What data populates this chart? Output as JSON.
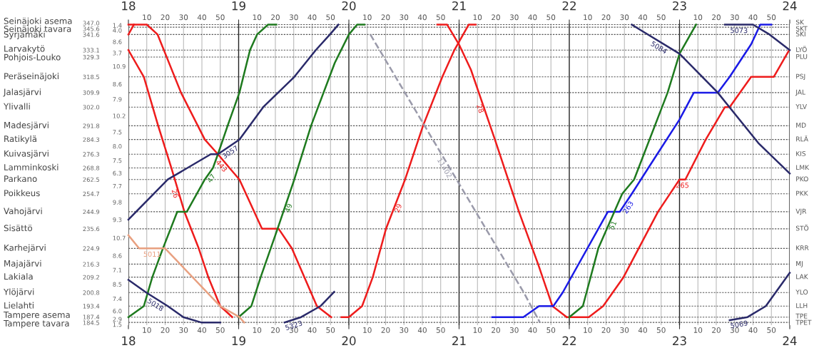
{
  "chart_data": {
    "type": "line",
    "xlim": [
      18,
      24
    ],
    "xticks": [
      18,
      {
        "value": 18.1667,
        "label": null
      },
      {
        "value": 18.3333,
        "label": null
      },
      {
        "value": 18.5,
        "label": null
      },
      {
        "value": 18.6667,
        "label": null
      },
      {
        "value": 18.8333,
        "label": null
      },
      19,
      {
        "value": 19.1667,
        "label": null
      },
      {
        "value": 19.3333,
        "label": null
      },
      {
        "value": 19.5,
        "label": null
      },
      {
        "value": 19.6667,
        "label": null
      },
      {
        "value": 19.8333,
        "label": null
      },
      20,
      {
        "value": 20.1667,
        "label": null
      },
      {
        "value": 20.3333,
        "label": null
      },
      {
        "value": 20.5,
        "label": null
      },
      {
        "value": 20.6667,
        "label": null
      },
      {
        "value": 20.8333,
        "label": null
      },
      21,
      {
        "value": 21.1667,
        "label": null
      },
      {
        "value": 21.3333,
        "label": null
      },
      {
        "value": 21.5,
        "label": null
      },
      {
        "value": 21.6667,
        "label": null
      },
      {
        "value": 21.8333,
        "label": null
      },
      22,
      {
        "value": 22.1667,
        "label": null
      },
      {
        "value": 22.3333,
        "label": null
      },
      {
        "value": 22.5,
        "label": null
      },
      {
        "value": 22.6667,
        "label": null
      },
      {
        "value": 22.8333,
        "label": null
      },
      23,
      {
        "value": 23.1667,
        "label": null
      },
      {
        "value": 23.3333,
        "label": null
      },
      {
        "value": 23.5,
        "label": null
      },
      {
        "value": 23.6667,
        "label": null
      },
      {
        "value": 23.8333,
        "label": null
      },
      24
    ],
    "x2lim": [
      18,
      24
    ],
    "x2ticks": [
      18,
      {
        "value": 18.1667,
        "label": null
      },
      {
        "value": 18.3333,
        "label": null
      },
      {
        "value": 18.5,
        "label": null
      },
      {
        "value": 18.6667,
        "label": null
      },
      {
        "value": 18.8333,
        "label": null
      },
      19,
      {
        "value": 19.1667,
        "label": null
      },
      {
        "value": 19.3333,
        "label": null
      },
      {
        "value": 19.5,
        "label": null
      },
      {
        "value": 19.6667,
        "label": null
      },
      {
        "value": 19.8333,
        "label": null
      },
      20,
      {
        "value": 20.1667,
        "label": null
      },
      {
        "value": 20.3333,
        "label": null
      },
      {
        "value": 20.5,
        "label": null
      },
      {
        "value": 20.6667,
        "label": null
      },
      {
        "value": 20.8333,
        "label": null
      },
      21,
      {
        "value": 21.1667,
        "label": null
      },
      {
        "value": 21.3333,
        "label": null
      },
      {
        "value": 21.5,
        "label": null
      },
      {
        "value": 21.6667,
        "label": null
      },
      {
        "value": 21.8333,
        "label": null
      },
      22,
      {
        "value": 22.1667,
        "label": null
      },
      {
        "value": 22.3333,
        "label": null
      },
      {
        "value": 22.5,
        "label": null
      },
      {
        "value": 22.6667,
        "label": null
      },
      {
        "value": 22.8333,
        "label": null
      },
      23,
      {
        "value": 23.1667,
        "label": null
      },
      {
        "value": 23.3333,
        "label": null
      },
      {
        "value": 23.5,
        "label": null
      },
      {
        "value": 23.6667,
        "label": null
      },
      {
        "value": 23.8333,
        "label": null
      },
      24
    ],
    "ylim": [
      183.0,
      347.6
    ],
    "yticks": [
      {
        "value": 347.0,
        "label": "347.0"
      },
      {
        "value": 345.6,
        "label": "345.6"
      },
      {
        "value": 341.6,
        "label": "341.6"
      },
      {
        "value": 333.1,
        "label": "333.1"
      },
      {
        "value": 329.3,
        "label": "329.3"
      },
      {
        "value": 318.5,
        "label": "318.5"
      },
      {
        "value": 309.9,
        "label": "309.9"
      },
      {
        "value": 302.0,
        "label": "302.0"
      },
      {
        "value": 291.8,
        "label": "291.8"
      },
      {
        "value": 284.3,
        "label": "284.3"
      },
      {
        "value": 276.3,
        "label": "276.3"
      },
      {
        "value": 268.8,
        "label": "268.8"
      },
      {
        "value": 262.5,
        "label": "262.5"
      },
      {
        "value": 254.7,
        "label": "254.7"
      },
      {
        "value": 244.9,
        "label": "244.9"
      },
      {
        "value": 235.6,
        "label": "235.6"
      },
      {
        "value": 224.9,
        "label": "224.9"
      },
      {
        "value": 216.3,
        "label": "216.3"
      },
      {
        "value": 209.2,
        "label": "209.2"
      },
      {
        "value": 200.8,
        "label": "200.8"
      },
      {
        "value": 193.4,
        "label": "193.4"
      },
      {
        "value": 187.4,
        "label": "187.4"
      },
      {
        "value": 184.5,
        "label": "184.5"
      }
    ],
    "annotations": [
      "Seinäjoki asema",
      "Seinäjoki tavara",
      "Syrjämäki",
      "Larvakytö",
      "Pohjois-Louko",
      "Peräseinäjoki",
      "Jalasjärvi",
      "Ylivalli",
      "Madesjärvi",
      "Ratikylä",
      "Kuivasjärvi",
      "Lamminkoski",
      "Parkano",
      "Poikkeus",
      "Vahojärvi",
      "Sisättö",
      "Karhejärvi",
      "Majajärvi",
      "Lakiala",
      "Ylöjärvi",
      "Lielahti",
      "Tampere asema",
      "Tampere tavara",
      "SK",
      "SKT",
      "SKI",
      "LYÖ",
      "PLU",
      "PSJ",
      "JAL",
      "YLV",
      "MD",
      "RLÄ",
      "KIS",
      "LMK",
      "PKO",
      "PKK",
      "VJR",
      "STÖ",
      "KRR",
      "MJ",
      "LAK",
      "YLO",
      "LLH",
      "TPE",
      "TPET",
      "1.4",
      "4.0",
      "8.6",
      "3.7",
      "10.9",
      "8.6",
      "7.9",
      "10.2",
      "7.5",
      "8.0",
      "7.5",
      "6.3",
      "7.7",
      "9.8",
      "9.3",
      "10.7",
      "8.6",
      "7.1",
      "8.5",
      "7.4",
      "6.0",
      "2.9",
      "1.5",
      "10",
      "20",
      "30",
      "40",
      "50",
      "10",
      "20",
      "30",
      "40",
      "50",
      "10",
      "20",
      "30",
      "40",
      "50",
      "10",
      "20",
      "30",
      "40",
      "50",
      "10",
      "20",
      "30",
      "40",
      "50",
      "10",
      "20",
      "30",
      "40",
      "50",
      "10",
      "20",
      "30",
      "40",
      "50",
      "10",
      "20",
      "30",
      "40",
      "50",
      "10",
      "20",
      "30",
      "40",
      "50",
      "10",
      "20",
      "30",
      "40",
      "50",
      "10",
      "20",
      "30",
      "40",
      "50",
      "10",
      "20",
      "30",
      "40",
      "50"
    ],
    "grid": true,
    "marker": "none",
    "line_style": "solid",
    "series": [
      {
        "name": "443",
        "color": "#ee1c1c",
        "x": [
          18.0,
          18.167,
          18.265,
          18.477,
          18.693,
          18.812,
          18.917,
          19.007,
          19.212,
          19.363,
          19.483,
          19.71,
          19.84
        ],
        "values": [
          347.0,
          347.0,
          341.6,
          309.9,
          284.3,
          276.3,
          268.8,
          262.5,
          235.6,
          235.6,
          224.9,
          193.4,
          187.4
        ]
      },
      {
        "color": "#ee1c1c",
        "x": [
          18.0,
          18.05
        ],
        "values": [
          341.6,
          347.0
        ]
      },
      {
        "name": "26",
        "color": "#ee1c1c",
        "x": [
          18.0,
          18.14,
          18.27,
          18.39,
          18.508,
          18.638,
          18.725,
          18.833,
          18.942
        ],
        "values": [
          333.1,
          318.5,
          291.8,
          268.8,
          244.9,
          224.9,
          209.2,
          193.4,
          187.4
        ]
      },
      {
        "name": "47",
        "color": "#1e7a1e",
        "x": [
          18.0,
          18.14,
          18.217,
          18.313,
          18.443,
          18.53,
          18.693,
          18.767,
          18.812,
          18.9,
          19.007,
          19.103,
          19.167,
          19.267,
          19.342
        ],
        "values": [
          187.4,
          193.4,
          209.2,
          224.9,
          244.9,
          244.9,
          262.5,
          268.8,
          276.3,
          291.8,
          309.9,
          333.1,
          341.6,
          347.0,
          347.0
        ]
      },
      {
        "name": "49",
        "color": "#1e7a1e",
        "x": [
          19.0,
          19.115,
          19.2,
          19.353,
          19.505,
          19.657,
          19.872,
          20.0,
          20.075,
          20.142
        ],
        "values": [
          187.4,
          193.4,
          209.2,
          235.6,
          262.5,
          291.8,
          326.1,
          341.6,
          347.0,
          347.0
        ]
      },
      {
        "name": "3057",
        "color": "#2a2a6a",
        "x": [
          18.0,
          18.357,
          18.747,
          18.812,
          19.007,
          19.223,
          19.505,
          19.7,
          19.828,
          19.905
        ],
        "values": [
          240.6,
          262.5,
          276.3,
          276.3,
          284.3,
          302.0,
          318.5,
          333.1,
          341.6,
          347.0
        ]
      },
      {
        "name": "5018",
        "color": "#2a2a6a",
        "x": [
          18.0,
          18.162,
          18.357,
          18.498,
          18.66,
          18.833
        ],
        "values": [
          207.7,
          200.8,
          193.4,
          187.4,
          184.5,
          184.5
        ]
      },
      {
        "name": "5011",
        "color": "#e8a080",
        "x": [
          18.0,
          18.097,
          18.333,
          18.833,
          19.007,
          19.05
        ],
        "values": [
          232.1,
          224.9,
          224.9,
          193.4,
          187.4,
          184.5
        ]
      },
      {
        "name": "5323",
        "color": "#2a2a6a",
        "x": [
          19.417,
          19.567,
          19.742,
          19.867
        ],
        "values": [
          184.5,
          187.4,
          193.4,
          201.2
        ]
      },
      {
        "name": "29",
        "color": "#ee1c1c",
        "x": [
          19.933,
          20.0,
          20.12,
          20.217,
          20.337,
          20.51,
          20.673,
          20.848,
          20.957,
          21.087,
          21.15
        ],
        "values": [
          187.4,
          187.4,
          193.4,
          209.2,
          235.6,
          262.5,
          291.8,
          318.5,
          333.1,
          347.0,
          347.0
        ]
      },
      {
        "name": "28",
        "color": "#ee1c1c",
        "x": [
          20.803,
          20.892,
          21.0,
          21.108,
          21.325,
          21.543,
          21.717,
          21.847,
          21.977
        ],
        "values": [
          347.0,
          347.0,
          336.1,
          322.3,
          284.3,
          244.9,
          216.3,
          193.4,
          187.4
        ]
      },
      {
        "name": "265",
        "color": "#ee1c1c",
        "x": [
          21.977,
          22.177,
          22.307,
          22.492,
          22.805,
          23.0,
          23.053,
          23.238,
          23.412,
          23.455,
          23.65,
          23.855,
          23.995
        ],
        "values": [
          187.4,
          187.4,
          193.4,
          209.2,
          244.9,
          262.5,
          262.5,
          284.3,
          302.0,
          302.0,
          318.5,
          318.5,
          333.1
        ]
      },
      {
        "name": "263",
        "color": "#1a1ae6",
        "x": [
          21.3,
          21.583,
          21.725,
          21.855,
          21.94,
          22.35,
          22.458,
          22.567,
          22.717,
          23.0,
          23.13,
          23.347,
          23.455,
          23.65,
          23.733,
          23.833
        ],
        "values": [
          187.4,
          187.4,
          193.4,
          193.4,
          200.8,
          244.9,
          244.9,
          254.7,
          268.8,
          295.2,
          309.9,
          309.9,
          318.5,
          336.3,
          347.0,
          347.0
        ]
      },
      {
        "name": "51",
        "color": "#1e7a1e",
        "x": [
          22.0,
          22.123,
          22.263,
          22.48,
          22.588,
          22.892,
          23.0,
          23.15
        ],
        "values": [
          187.4,
          193.4,
          224.9,
          254.7,
          262.5,
          309.9,
          331.1,
          347.0
        ]
      },
      {
        "name": "5084",
        "color": "#2a2a6a",
        "x": [
          22.567,
          22.653,
          23.0,
          23.347,
          23.715,
          24.0
        ],
        "values": [
          347.0,
          343.8,
          331.1,
          309.9,
          282.4,
          265.8
        ]
      },
      {
        "name": "5069",
        "color": "#2a2a6a",
        "x": [
          23.455,
          23.617,
          23.783,
          24.0
        ],
        "values": [
          185.7,
          187.4,
          193.4,
          211.6
        ]
      },
      {
        "name": "5073",
        "color": "#2a2a6a",
        "x": [
          23.412,
          23.667,
          23.817,
          24.0
        ],
        "values": [
          347.0,
          347.0,
          341.6,
          333.1
        ]
      },
      {
        "name": "11402",
        "color": "#9a9aaa",
        "line_style": "dashed",
        "x": [
          20.195,
          21.587,
          21.733
        ],
        "values": [
          341.6,
          200.8,
          184.5
        ]
      }
    ]
  }
}
